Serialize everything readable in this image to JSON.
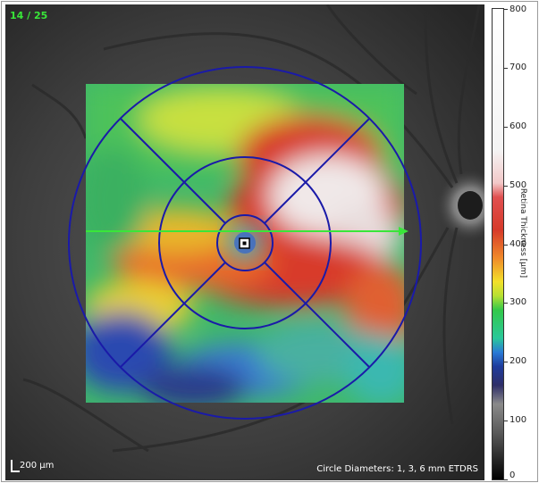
{
  "scan_counter": "14 / 25",
  "scale_label": "200 µm",
  "circle_diameters": "Circle Diameters: 1, 3, 6 mm ETDRS",
  "colorbar": {
    "title": "Retina Thickness [µm]",
    "min": 0,
    "max": 800,
    "tick_labels": [
      "800",
      "700",
      "600",
      "500",
      "400",
      "300",
      "200",
      "100",
      "0"
    ]
  },
  "colors": {
    "counter_green": "#39e639",
    "etdrs_blue": "#1a1aa8",
    "scan_line_green": "#39e639"
  }
}
